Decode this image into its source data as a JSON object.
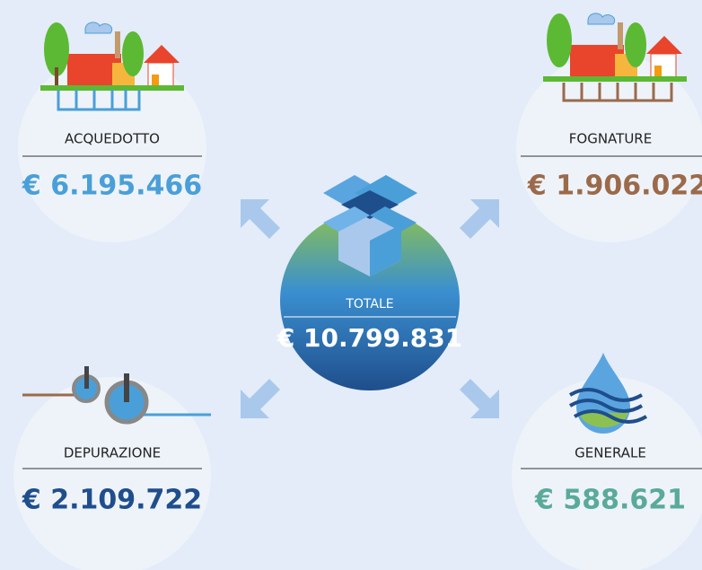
{
  "total": {
    "label": "TOTALE",
    "amount": "€ 10.799.831"
  },
  "items": [
    {
      "label": "ACQUEDOTTO",
      "amount": "€ 6.195.466"
    },
    {
      "label": "FOGNATURE",
      "amount": "€ 1.906.022"
    },
    {
      "label": "DEPURAZIONE",
      "amount": "€ 2.109.722"
    },
    {
      "label": "GENERALE",
      "amount": "€ 588.621"
    }
  ]
}
